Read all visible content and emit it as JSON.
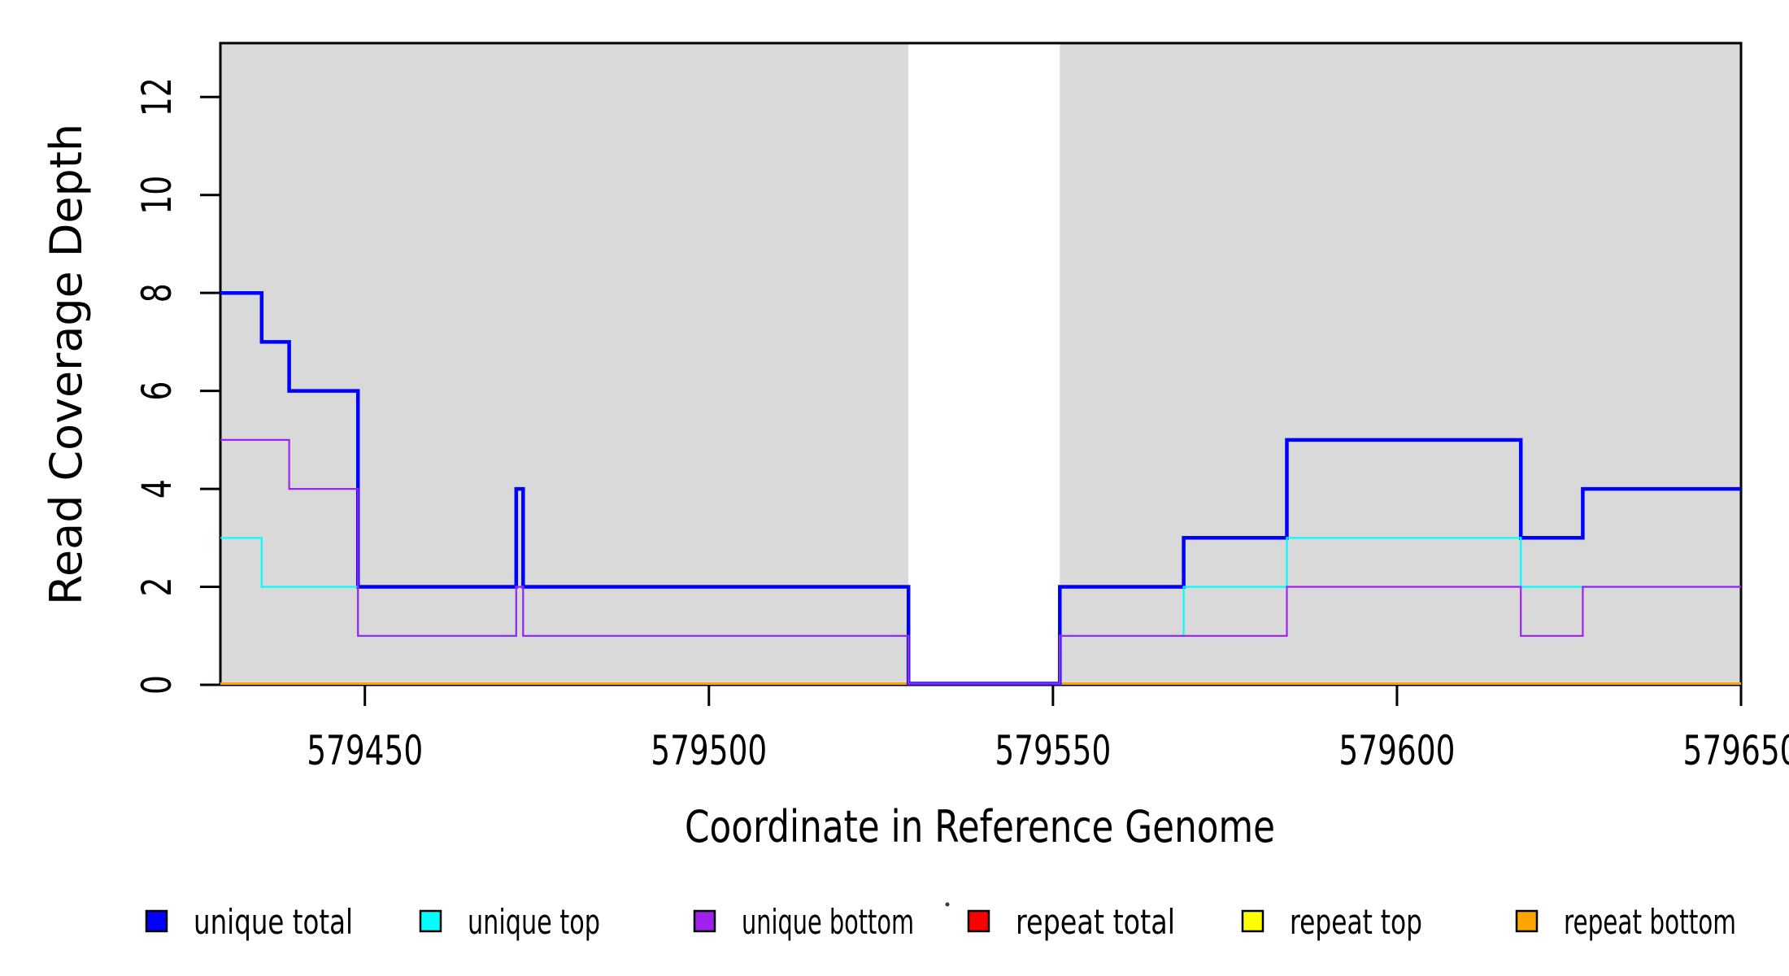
{
  "figure": {
    "xlabel": "Coordinate in Reference Genome",
    "ylabel": "Read Coverage Depth"
  },
  "chart_data": {
    "type": "line",
    "subtype": "step-after",
    "title": "",
    "xlabel": "Coordinate in Reference Genome",
    "ylabel": "Read Coverage Depth",
    "xlim": [
      579429,
      579650
    ],
    "ylim": [
      0,
      13.1
    ],
    "x_ticks": [
      579450,
      579500,
      579550,
      579600,
      579650
    ],
    "y_ticks": [
      0,
      2,
      4,
      6,
      8,
      10,
      12
    ],
    "grid": false,
    "legend_position": "bottom",
    "background_color": "#ffffff",
    "shaded_region_color": "#D9D9D9",
    "background_regions": [
      {
        "name": "aligned-region-left",
        "x0": 579429,
        "x1": 579529
      },
      {
        "name": "gap-region",
        "x0": 579529,
        "x1": 579551,
        "color": "#ffffff"
      },
      {
        "name": "aligned-region-right",
        "x0": 579551,
        "x1": 579650
      }
    ],
    "series": [
      {
        "name": "unique total",
        "color": "#0000FF",
        "line_width": 4.5,
        "draw_order": 4,
        "steps": [
          [
            579429,
            8
          ],
          [
            579435,
            7
          ],
          [
            579439,
            6
          ],
          [
            579449,
            2
          ],
          [
            579472,
            4
          ],
          [
            579473,
            2
          ],
          [
            579529,
            0
          ],
          [
            579551,
            2
          ],
          [
            579569,
            3
          ],
          [
            579584,
            5
          ],
          [
            579618,
            3
          ],
          [
            579627,
            4
          ],
          [
            579650,
            4
          ]
        ]
      },
      {
        "name": "unique top",
        "color": "#00FFFF",
        "line_width": 2.2,
        "draw_order": 5,
        "steps": [
          [
            579429,
            3
          ],
          [
            579435,
            2
          ],
          [
            579449,
            1
          ],
          [
            579472,
            2
          ],
          [
            579473,
            1
          ],
          [
            579529,
            0
          ],
          [
            579551,
            1
          ],
          [
            579569,
            2
          ],
          [
            579584,
            3
          ],
          [
            579618,
            2
          ],
          [
            579650,
            2
          ]
        ]
      },
      {
        "name": "unique bottom",
        "color": "#A020F0",
        "line_width": 2.2,
        "draw_order": 6,
        "steps": [
          [
            579429,
            5
          ],
          [
            579439,
            4
          ],
          [
            579449,
            1
          ],
          [
            579472,
            2
          ],
          [
            579473,
            1
          ],
          [
            579529,
            0
          ],
          [
            579551,
            1
          ],
          [
            579584,
            2
          ],
          [
            579618,
            1
          ],
          [
            579627,
            2
          ],
          [
            579650,
            2
          ]
        ]
      },
      {
        "name": "repeat total",
        "color": "#FF0000",
        "line_width": 3,
        "draw_order": 1,
        "steps": [
          [
            579429,
            0
          ],
          [
            579650,
            0
          ]
        ]
      },
      {
        "name": "repeat top",
        "color": "#FFFF00",
        "line_width": 3,
        "draw_order": 2,
        "steps": [
          [
            579429,
            0
          ],
          [
            579650,
            0
          ]
        ]
      },
      {
        "name": "repeat bottom",
        "color": "#FFA500",
        "line_width": 3,
        "draw_order": 3,
        "steps": [
          [
            579429,
            0
          ],
          [
            579650,
            0
          ]
        ]
      }
    ],
    "legend": [
      {
        "label": "unique total",
        "color": "#0000FF"
      },
      {
        "label": "unique top",
        "color": "#00FFFF"
      },
      {
        "label": "unique bottom",
        "color": "#A020F0"
      },
      {
        "label": "repeat total",
        "color": "#FF0000"
      },
      {
        "label": "repeat top",
        "color": "#FFFF00"
      },
      {
        "label": "repeat bottom",
        "color": "#FFA500"
      }
    ]
  }
}
